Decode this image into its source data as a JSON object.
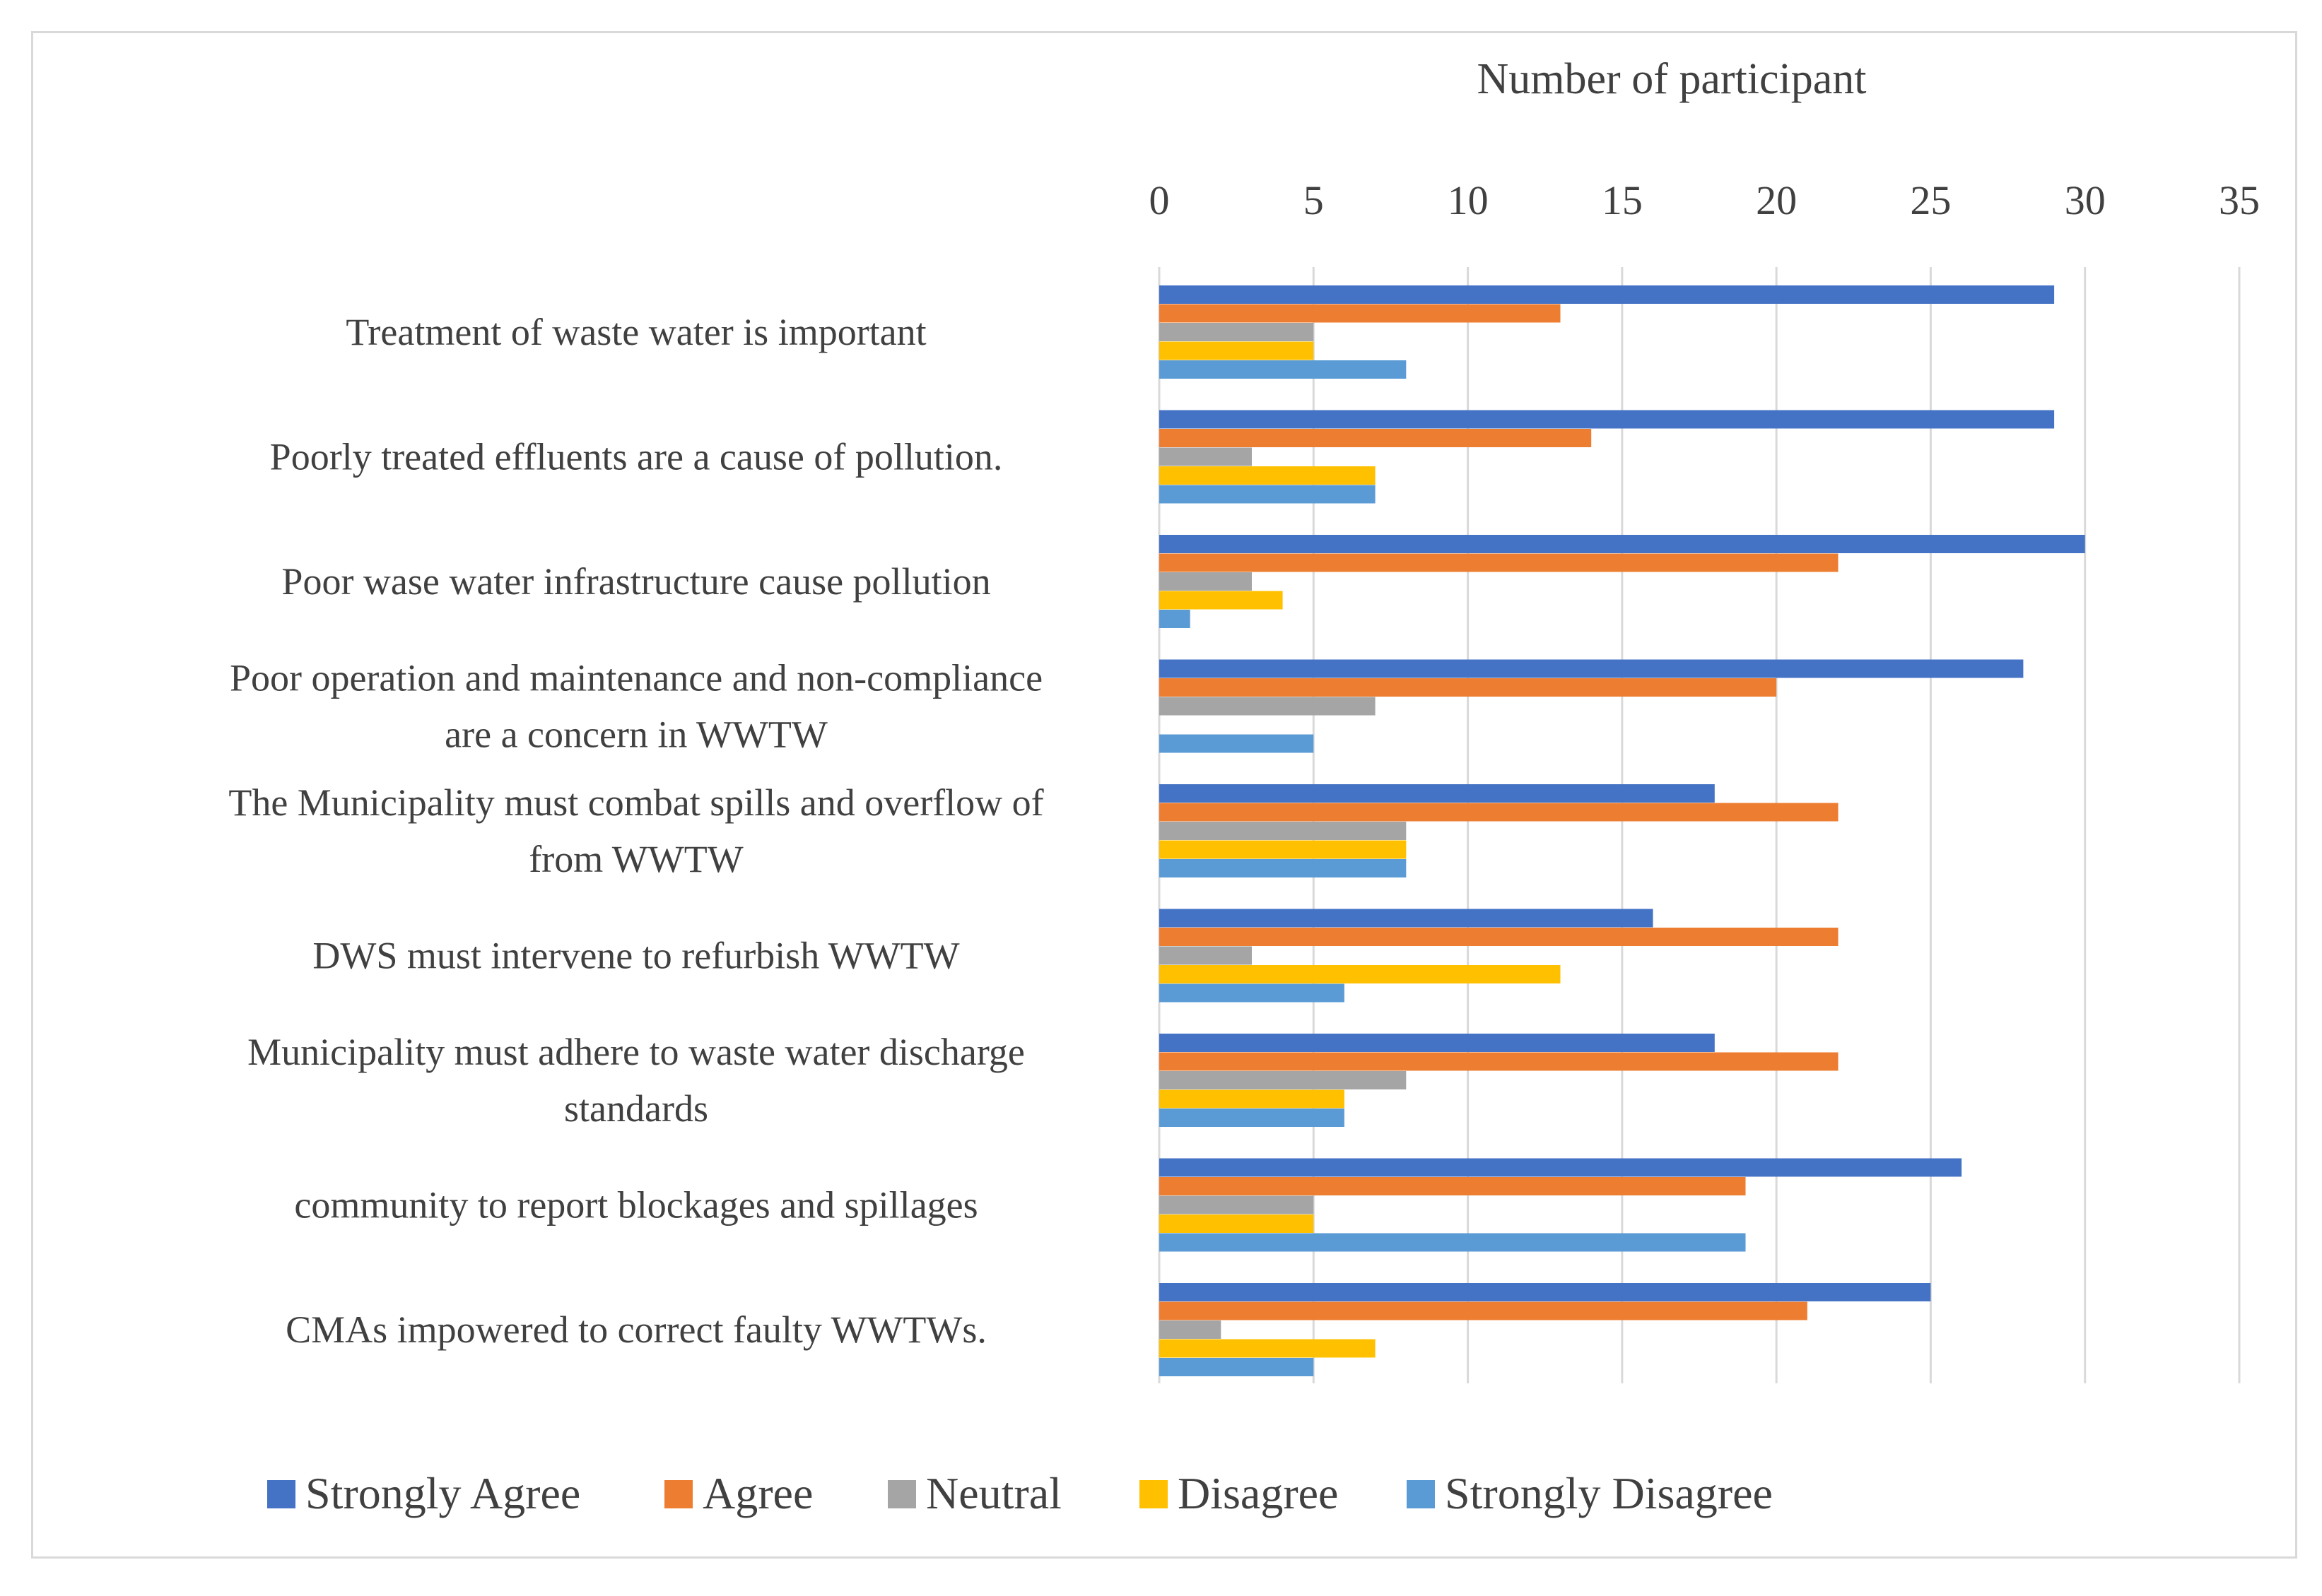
{
  "chart_data": {
    "type": "bar",
    "orientation": "horizontal",
    "title": "",
    "xlabel": "Number of participant",
    "ylabel": "",
    "xlim": [
      0,
      35
    ],
    "ticks": [
      0,
      5,
      10,
      15,
      20,
      25,
      30,
      35
    ],
    "tick_labels": [
      "0",
      "5",
      "10",
      "15",
      "20",
      "25",
      "30",
      "35"
    ],
    "grid": true,
    "axis_position": "top",
    "legend_position": "bottom",
    "categories": [
      [
        "Treatment of waste water is important"
      ],
      [
        "Poorly treated effluents are a cause of pollution."
      ],
      [
        "Poor wase water infrastructure cause pollution"
      ],
      [
        "Poor operation and maintenance and non-compliance",
        "are a concern in WWTW"
      ],
      [
        "The Municipality must combat spills and overflow of",
        "from WWTW"
      ],
      [
        "DWS must intervene to  refurbish WWTW"
      ],
      [
        "Municipality must adhere to waste water discharge",
        "standards"
      ],
      [
        "community to report blockages and spillages"
      ],
      [
        "CMAs impowered to correct faulty WWTWs."
      ]
    ],
    "series": [
      {
        "name": "Strongly Agree",
        "color": "#4472c4",
        "values": [
          29,
          29,
          30,
          28,
          18,
          16,
          18,
          26,
          25
        ]
      },
      {
        "name": "Agree",
        "color": "#ed7d31",
        "values": [
          13,
          14,
          22,
          20,
          22,
          22,
          22,
          19,
          21
        ]
      },
      {
        "name": "Neutral",
        "color": "#a5a5a5",
        "values": [
          5,
          3,
          3,
          7,
          8,
          3,
          8,
          5,
          2
        ]
      },
      {
        "name": "Disagree",
        "color": "#ffc000",
        "values": [
          5,
          7,
          4,
          0,
          8,
          13,
          6,
          5,
          7
        ]
      },
      {
        "name": "Strongly Disagree",
        "color": "#5b9bd5",
        "values": [
          8,
          7,
          1,
          5,
          8,
          6,
          6,
          19,
          5
        ]
      }
    ]
  }
}
